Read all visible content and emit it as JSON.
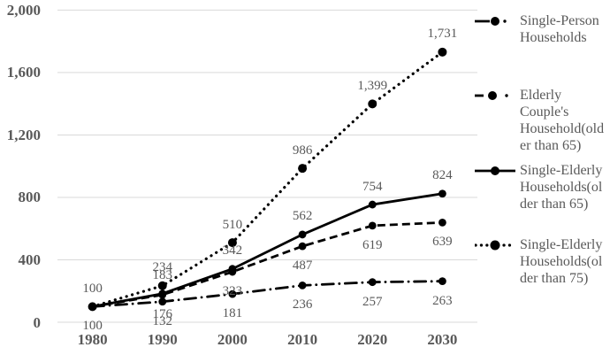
{
  "chart_data": {
    "type": "line",
    "title": "",
    "xlabel": "",
    "ylabel": "",
    "categories": [
      "1980",
      "1990",
      "2000",
      "2010",
      "2020",
      "2030"
    ],
    "y_ticks": [
      {
        "label": "0",
        "value": 0
      },
      {
        "label": "400",
        "value": 400
      },
      {
        "label": "800",
        "value": 800
      },
      {
        "label": "1,200",
        "value": 1200
      },
      {
        "label": "1,600",
        "value": 1600
      },
      {
        "label": "2,000",
        "value": 2000
      }
    ],
    "ylim": [
      0,
      2000
    ],
    "grid": true,
    "legend_position": "right",
    "series": [
      {
        "name": "Single-Person Households",
        "line_style": "dashdot",
        "marker": "circle",
        "color": "#000000",
        "values": [
          100,
          132,
          181,
          236,
          257,
          263
        ],
        "point_labels": [
          "100",
          "132",
          "181",
          "236",
          "257",
          "263"
        ],
        "label_position": "below"
      },
      {
        "name": "Elderly Couple's Household(older than 65)",
        "line_style": "dashed",
        "marker": "circle",
        "color": "#000000",
        "values": [
          100,
          176,
          323,
          487,
          619,
          639
        ],
        "point_labels": [
          "",
          "176",
          "323",
          "487",
          "619",
          "639"
        ],
        "label_position": "below"
      },
      {
        "name": "Single-Elderly Households(older than 65)",
        "line_style": "solid",
        "marker": "circle",
        "color": "#000000",
        "values": [
          100,
          183,
          342,
          562,
          754,
          824
        ],
        "point_labels": [
          "",
          "183",
          "342",
          "562",
          "754",
          "824"
        ],
        "label_position": "above"
      },
      {
        "name": "Single-Elderly Households(older than 75)",
        "line_style": "dotted",
        "marker": "circle",
        "color": "#000000",
        "values": [
          100,
          234,
          510,
          986,
          1399,
          1731
        ],
        "point_labels": [
          "100",
          "234",
          "510",
          "986",
          "1,399",
          "1,731"
        ],
        "label_position": "above"
      }
    ],
    "legend": [
      {
        "label": "Single-Person Households",
        "lines": [
          "Single-Person",
          "Households"
        ],
        "style": "dashdot"
      },
      {
        "label": "Elderly Couple's Household(older than 65)",
        "lines": [
          "Elderly",
          "Couple's",
          "Household(old",
          "er than 65)"
        ],
        "style": "dashed"
      },
      {
        "label": "Single-Elderly Households(older than 65)",
        "lines": [
          "Single-Elderly",
          "Households(ol",
          "der than 65)"
        ],
        "style": "solid"
      },
      {
        "label": "Single-Elderly Households(older than 75)",
        "lines": [
          "Single-Elderly",
          "Households(ol",
          "der than 75)"
        ],
        "style": "dotted"
      }
    ],
    "colors": {
      "line": "#000000",
      "data_label_text": "#595959",
      "axis_text": "#595959",
      "gridline": "#D9D9D9",
      "background": "#FFFFFF"
    }
  }
}
